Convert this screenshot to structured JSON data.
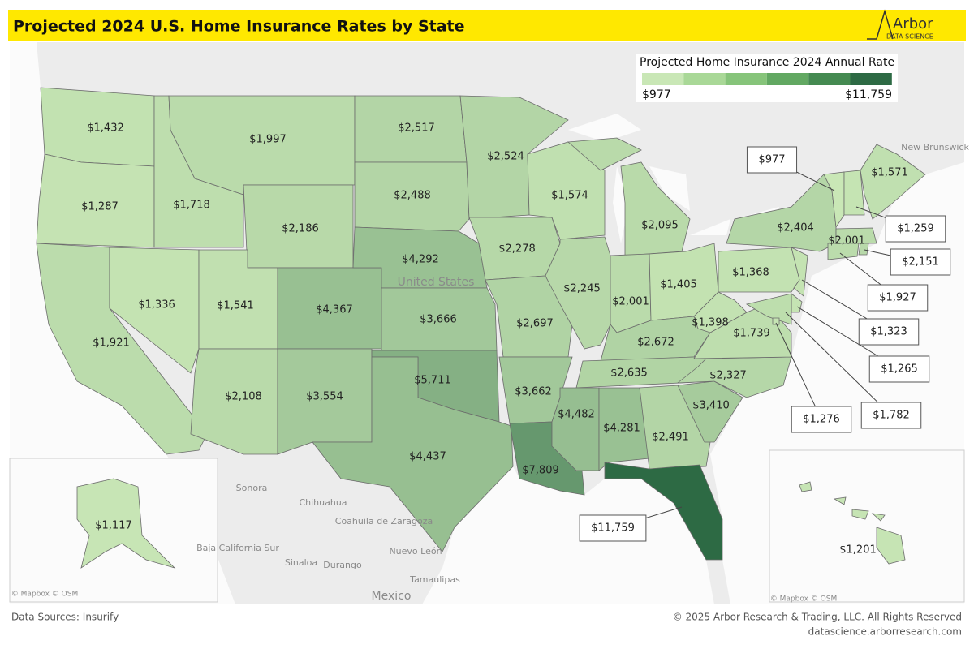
{
  "header": {
    "title": "Projected 2024 U.S. Home Insurance Rates by State",
    "logo_main": "Arbor",
    "logo_sub": "DATA SCIENCE"
  },
  "chart_data": {
    "type": "choropleth",
    "values": [
      1432,
      1287,
      1921,
      1336,
      1718,
      1997,
      2186,
      1541,
      2108,
      4367,
      3554,
      2517,
      2488,
      4292,
      3666,
      5711,
      4437,
      2524,
      2278,
      2697,
      3662,
      7809,
      1574,
      2245,
      2095,
      2001,
      1405,
      2672,
      2635,
      4482,
      4281,
      2491,
      11759,
      3410,
      2327,
      1739,
      1398,
      1368,
      2404,
      1571,
      977,
      1259,
      2001,
      2151,
      1927,
      1323,
      1265,
      1782,
      1276,
      1117,
      1201
    ],
    "value_labels": [
      "$1,432",
      "$1,287",
      "$1,921",
      "$1,336",
      "$1,718",
      "$1,997",
      "$2,186",
      "$1,541",
      "$2,108",
      "$4,367",
      "$3,554",
      "$2,517",
      "$2,488",
      "$4,292",
      "$3,666",
      "$5,711",
      "$4,437",
      "$2,524",
      "$2,278",
      "$2,697",
      "$3,662",
      "$7,809",
      "$1,574",
      "$2,245",
      "$2,095",
      "$2,001",
      "$1,405",
      "$2,672",
      "$2,635",
      "$4,482",
      "$4,281",
      "$2,491",
      "$11,759",
      "$3,410",
      "$2,327",
      "$1,739",
      "$1,398",
      "$1,368",
      "$2,404",
      "$1,571",
      "$977",
      "$1,259",
      "$2,001",
      "$2,151",
      "$1,927",
      "$1,323",
      "$1,265",
      "$1,782",
      "$1,276",
      "$1,117",
      "$1,201"
    ],
    "color_range": [
      "#c9e7b6",
      "#2d6a44"
    ],
    "legend": {
      "title": "Projected Home Insurance 2024 Annual Rate",
      "min": {
        "value": 977,
        "label": "$977"
      },
      "max": {
        "value": 11759,
        "label": "$11,759"
      },
      "colors": [
        "#c9e7b6",
        "#a9d897",
        "#86c47a",
        "#62a862",
        "#458a51",
        "#2d6a44"
      ]
    },
    "base_map_labels": [
      "United States",
      "Mexico",
      "Sonora",
      "Chihuahua",
      "Coahuila de Zaragoza",
      "Nuevo León",
      "Sinaloa",
      "Durango",
      "Tamaulipas",
      "Baja California Sur",
      "New Brunswick",
      "© Mapbox © OSM",
      "© Mapbox © OSM"
    ]
  },
  "footer": {
    "source": "Data Sources: Insurify",
    "copyright": "© 2025 Arbor Research & Trading, LLC. All Rights Reserved",
    "website": "datascience.arborresearch.com"
  }
}
